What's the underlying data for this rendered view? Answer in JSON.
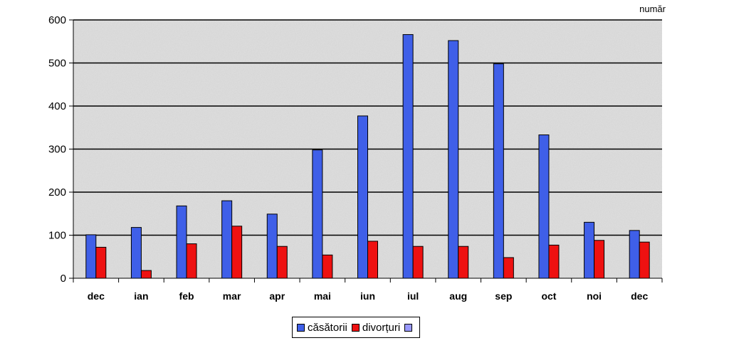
{
  "chart_data": {
    "type": "bar",
    "unit_label": "număr",
    "categories": [
      "dec",
      "ian",
      "feb",
      "mar",
      "apr",
      "mai",
      "iun",
      "iul",
      "aug",
      "sep",
      "oct",
      "noi",
      "dec"
    ],
    "series": [
      {
        "name": "căsătorii",
        "color": "#3f5fe8",
        "values": [
          101,
          118,
          168,
          180,
          149,
          298,
          377,
          566,
          552,
          498,
          333,
          130,
          111
        ]
      },
      {
        "name": "divorțuri",
        "color": "#ee1111",
        "values": [
          72,
          18,
          80,
          121,
          74,
          54,
          86,
          74,
          74,
          48,
          77,
          88,
          84
        ]
      }
    ],
    "legend_extra": {
      "name": "",
      "color": "#9999ff"
    },
    "yticks": [
      "0",
      "100",
      "200",
      "300",
      "400",
      "500",
      "600"
    ],
    "ylim": [
      0,
      600
    ],
    "grid": true,
    "legend_position": "bottom",
    "plot_background": "#dedede"
  }
}
